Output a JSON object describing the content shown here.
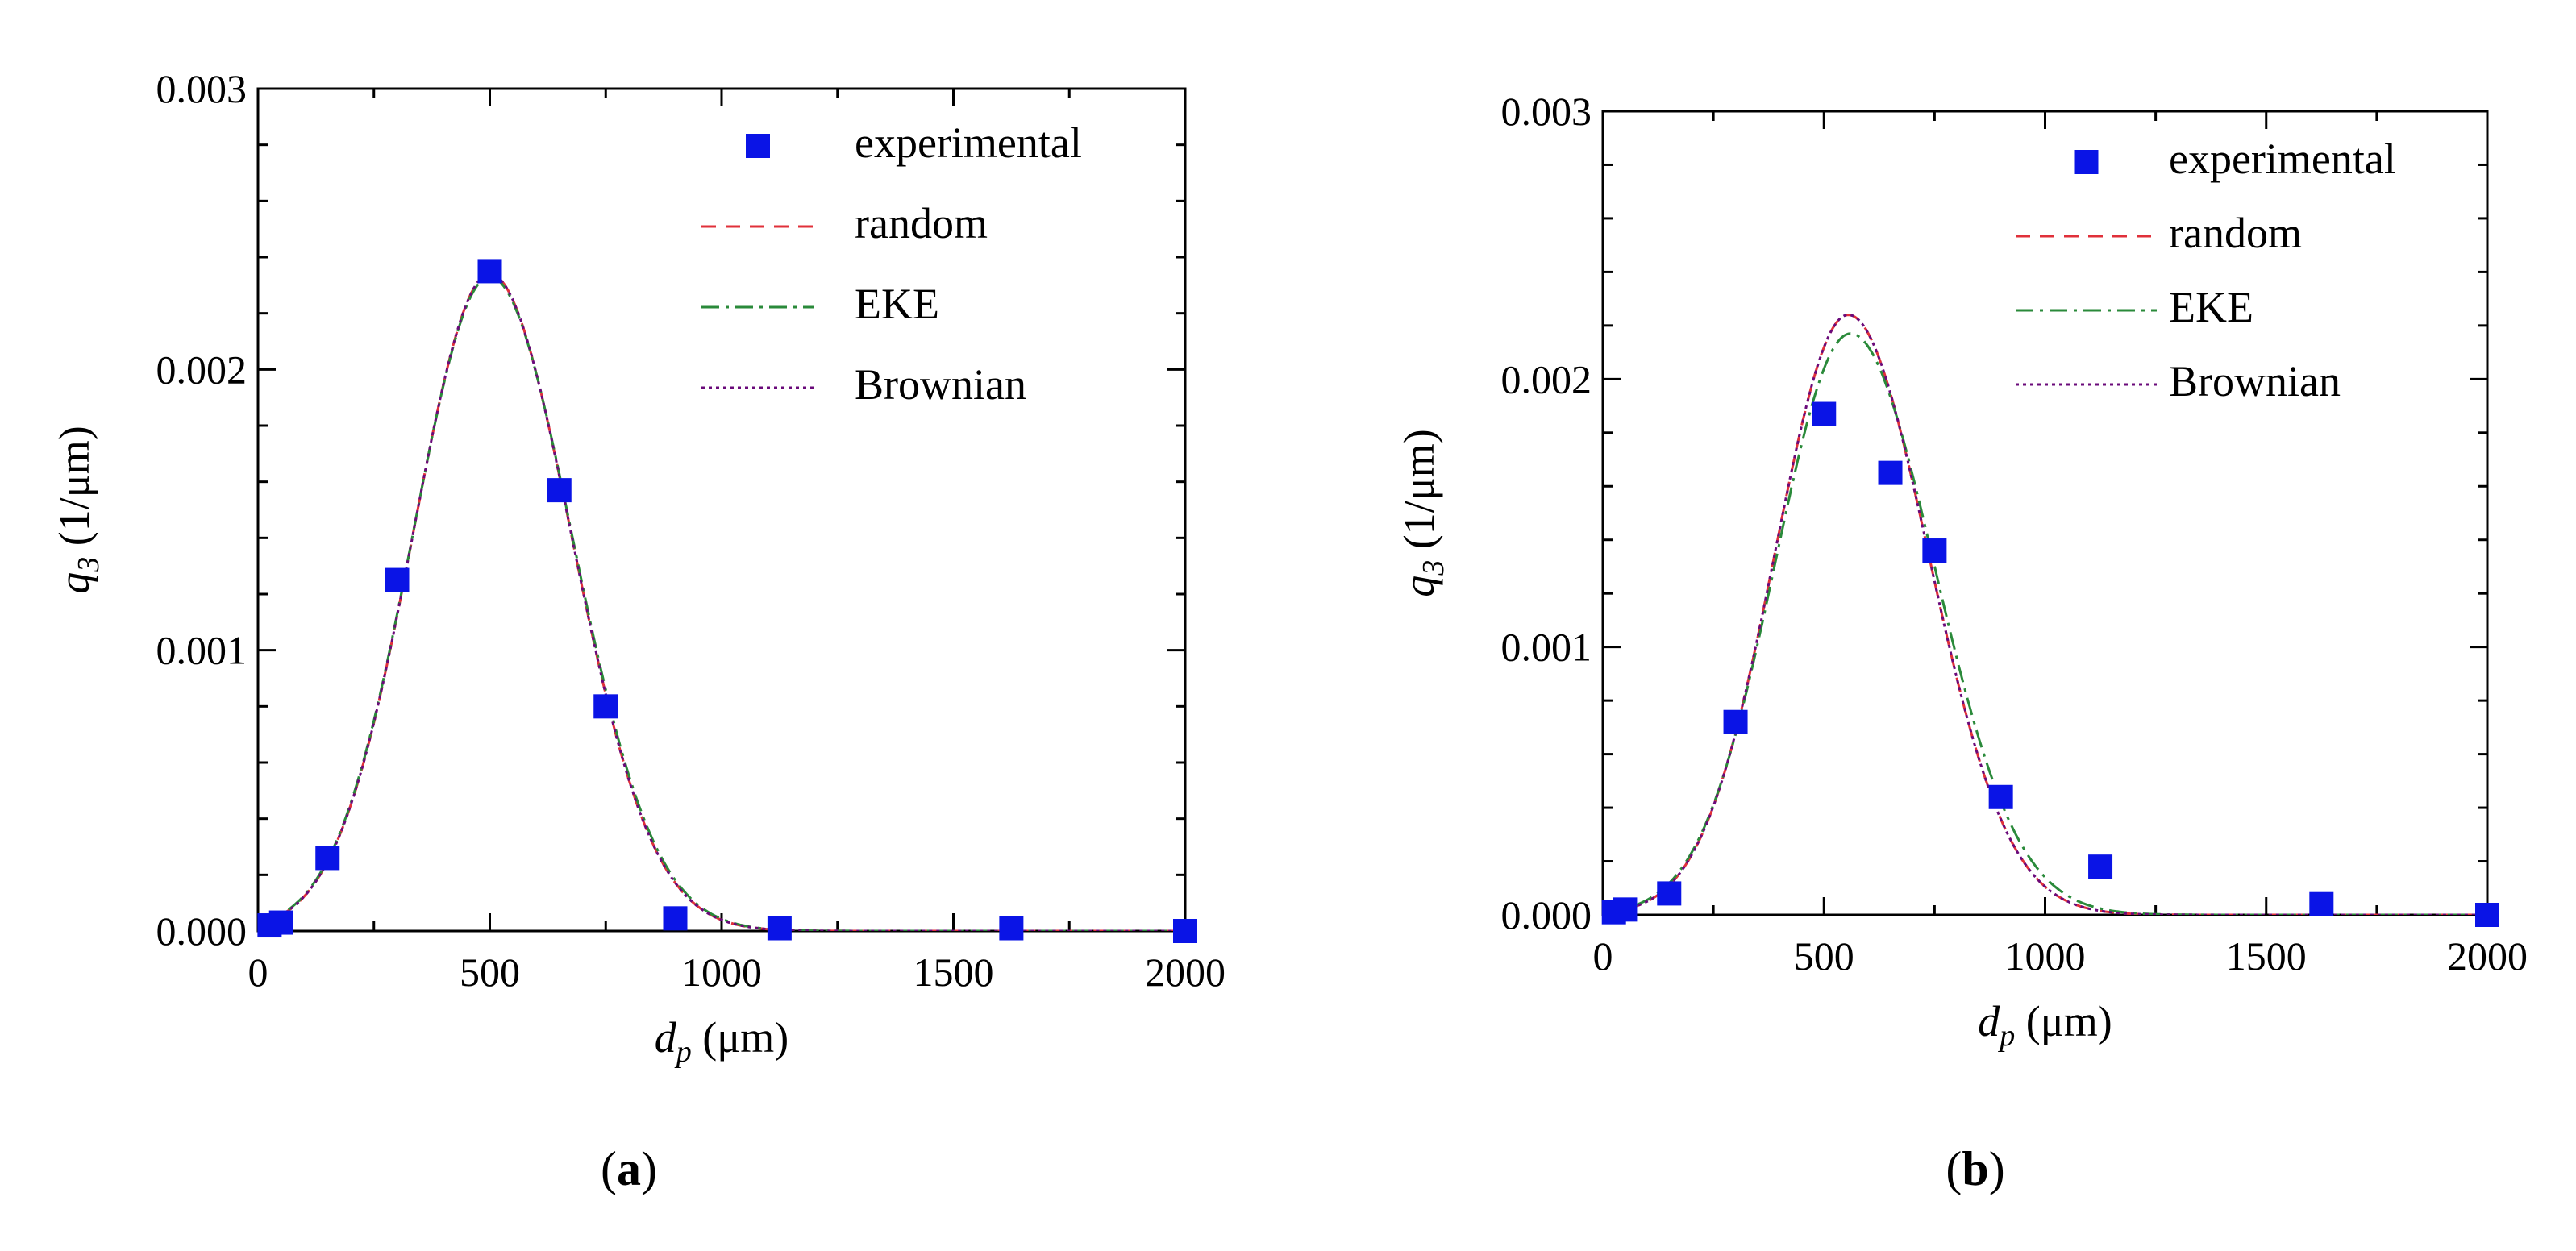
{
  "chart_data": [
    {
      "type": "line",
      "panel_label": "a",
      "xlabel_main": "d",
      "xlabel_sub": "p",
      "xlabel_unit": "(μm)",
      "ylabel_main": "q",
      "ylabel_sub": "3",
      "ylabel_unit": "(1/μm)",
      "xlim": [
        0,
        2000
      ],
      "ylim": [
        0,
        0.003
      ],
      "xticks": [
        0,
        500,
        1000,
        1500,
        2000
      ],
      "xtick_labels": [
        "0",
        "500",
        "1000",
        "1500",
        "2000"
      ],
      "yticks": [
        0,
        0.001,
        0.002,
        0.003
      ],
      "ytick_labels": [
        "0.000",
        "0.001",
        "0.002",
        "0.003"
      ],
      "legend_position": "top-right",
      "experimental": {
        "name": "experimental",
        "color": "#0a14e6",
        "x": [
          25,
          50,
          150,
          300,
          500,
          650,
          750,
          900,
          1125,
          1625,
          2000
        ],
        "y": [
          2e-05,
          3e-05,
          0.00026,
          0.00125,
          0.00235,
          0.00157,
          0.0008,
          4.5e-05,
          1e-05,
          1e-05,
          0.0
        ]
      },
      "series": [
        {
          "name": "random",
          "color": "#e0303a",
          "dash": "18,12",
          "mu": 500,
          "sigma_left": 165,
          "sigma_right": 175,
          "peak": 0.00234
        },
        {
          "name": "EKE",
          "color": "#2a8a3a",
          "dash": "22,8,4,8",
          "mu": 500,
          "sigma_left": 166,
          "sigma_right": 177,
          "peak": 0.00233
        },
        {
          "name": "Brownian",
          "color": "#6a0a7a",
          "dash": "4,5",
          "mu": 500,
          "sigma_left": 165,
          "sigma_right": 175,
          "peak": 0.00234
        }
      ]
    },
    {
      "type": "line",
      "panel_label": "b",
      "xlabel_main": "d",
      "xlabel_sub": "p",
      "xlabel_unit": "(μm)",
      "ylabel_main": "q",
      "ylabel_sub": "3",
      "ylabel_unit": "(1/μm)",
      "xlim": [
        0,
        2000
      ],
      "ylim": [
        0,
        0.003
      ],
      "xticks": [
        0,
        500,
        1000,
        1500,
        2000
      ],
      "xtick_labels": [
        "0",
        "500",
        "1000",
        "1500",
        "2000"
      ],
      "yticks": [
        0,
        0.001,
        0.002,
        0.003
      ],
      "ytick_labels": [
        "0.000",
        "0.001",
        "0.002",
        "0.003"
      ],
      "legend_position": "top-right",
      "experimental": {
        "name": "experimental",
        "color": "#0a14e6",
        "x": [
          25,
          50,
          150,
          300,
          500,
          650,
          750,
          900,
          1125,
          1625,
          2000
        ],
        "y": [
          1e-05,
          2e-05,
          8e-05,
          0.00072,
          0.00187,
          0.00165,
          0.00136,
          0.00044,
          0.00018,
          4e-05,
          0.0
        ]
      },
      "series": [
        {
          "name": "random",
          "color": "#e0303a",
          "dash": "18,12",
          "mu": 555,
          "sigma_left": 165,
          "sigma_right": 180,
          "peak": 0.00224
        },
        {
          "name": "EKE",
          "color": "#2a8a3a",
          "dash": "22,8,4,8",
          "mu": 560,
          "sigma_left": 170,
          "sigma_right": 188,
          "peak": 0.00217
        },
        {
          "name": "Brownian",
          "color": "#6a0a7a",
          "dash": "4,5",
          "mu": 555,
          "sigma_left": 165,
          "sigma_right": 180,
          "peak": 0.00224
        }
      ]
    }
  ]
}
